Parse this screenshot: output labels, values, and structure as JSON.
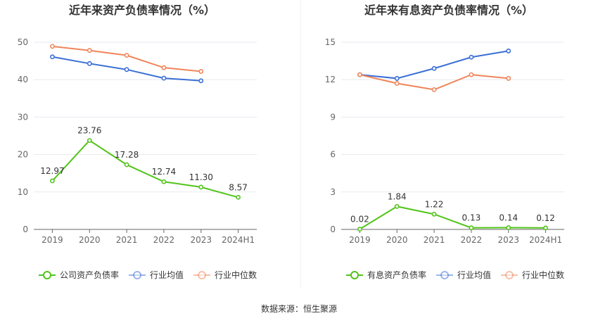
{
  "source": "数据来源：恒生聚源",
  "chart_data": [
    {
      "type": "line",
      "title": "近年来资产负债率情况（%）",
      "categories": [
        "2019",
        "2020",
        "2021",
        "2022",
        "2023",
        "2024H1"
      ],
      "y_ticks": [
        "0",
        "10",
        "20",
        "30",
        "40",
        "50"
      ],
      "ylim": [
        0,
        50
      ],
      "grid": true,
      "legend_position": "bottom",
      "series": [
        {
          "name": "公司资产负债率",
          "color": "#52c41a",
          "values": [
            12.97,
            23.76,
            17.28,
            12.74,
            11.3,
            8.57
          ],
          "labels": [
            "12.97",
            "23.76",
            "17.28",
            "12.74",
            "11.30",
            "8.57"
          ]
        },
        {
          "name": "行业均值",
          "color": "#3b6fd6",
          "values": [
            46.1,
            44.3,
            42.7,
            40.4,
            39.7,
            null
          ]
        },
        {
          "name": "行业中位数",
          "color": "#f0855a",
          "values": [
            48.9,
            47.8,
            46.5,
            43.2,
            42.2,
            null
          ]
        }
      ]
    },
    {
      "type": "line",
      "title": "近年来有息资产负债率情况（%）",
      "categories": [
        "2019",
        "2020",
        "2021",
        "2022",
        "2023",
        "2024H1"
      ],
      "y_ticks": [
        "0",
        "3",
        "6",
        "9",
        "12",
        "15"
      ],
      "ylim": [
        0,
        15
      ],
      "grid": true,
      "legend_position": "bottom",
      "series": [
        {
          "name": "有息资产负债率",
          "color": "#52c41a",
          "values": [
            0.02,
            1.84,
            1.22,
            0.13,
            0.14,
            0.12
          ],
          "labels": [
            "0.02",
            "1.84",
            "1.22",
            "0.13",
            "0.14",
            "0.12"
          ]
        },
        {
          "name": "行业均值",
          "color": "#3b6fd6",
          "values": [
            12.4,
            12.1,
            12.9,
            13.8,
            14.3,
            null
          ]
        },
        {
          "name": "行业中位数",
          "color": "#f0855a",
          "values": [
            12.4,
            11.7,
            11.2,
            12.4,
            12.1,
            null
          ]
        }
      ]
    }
  ]
}
